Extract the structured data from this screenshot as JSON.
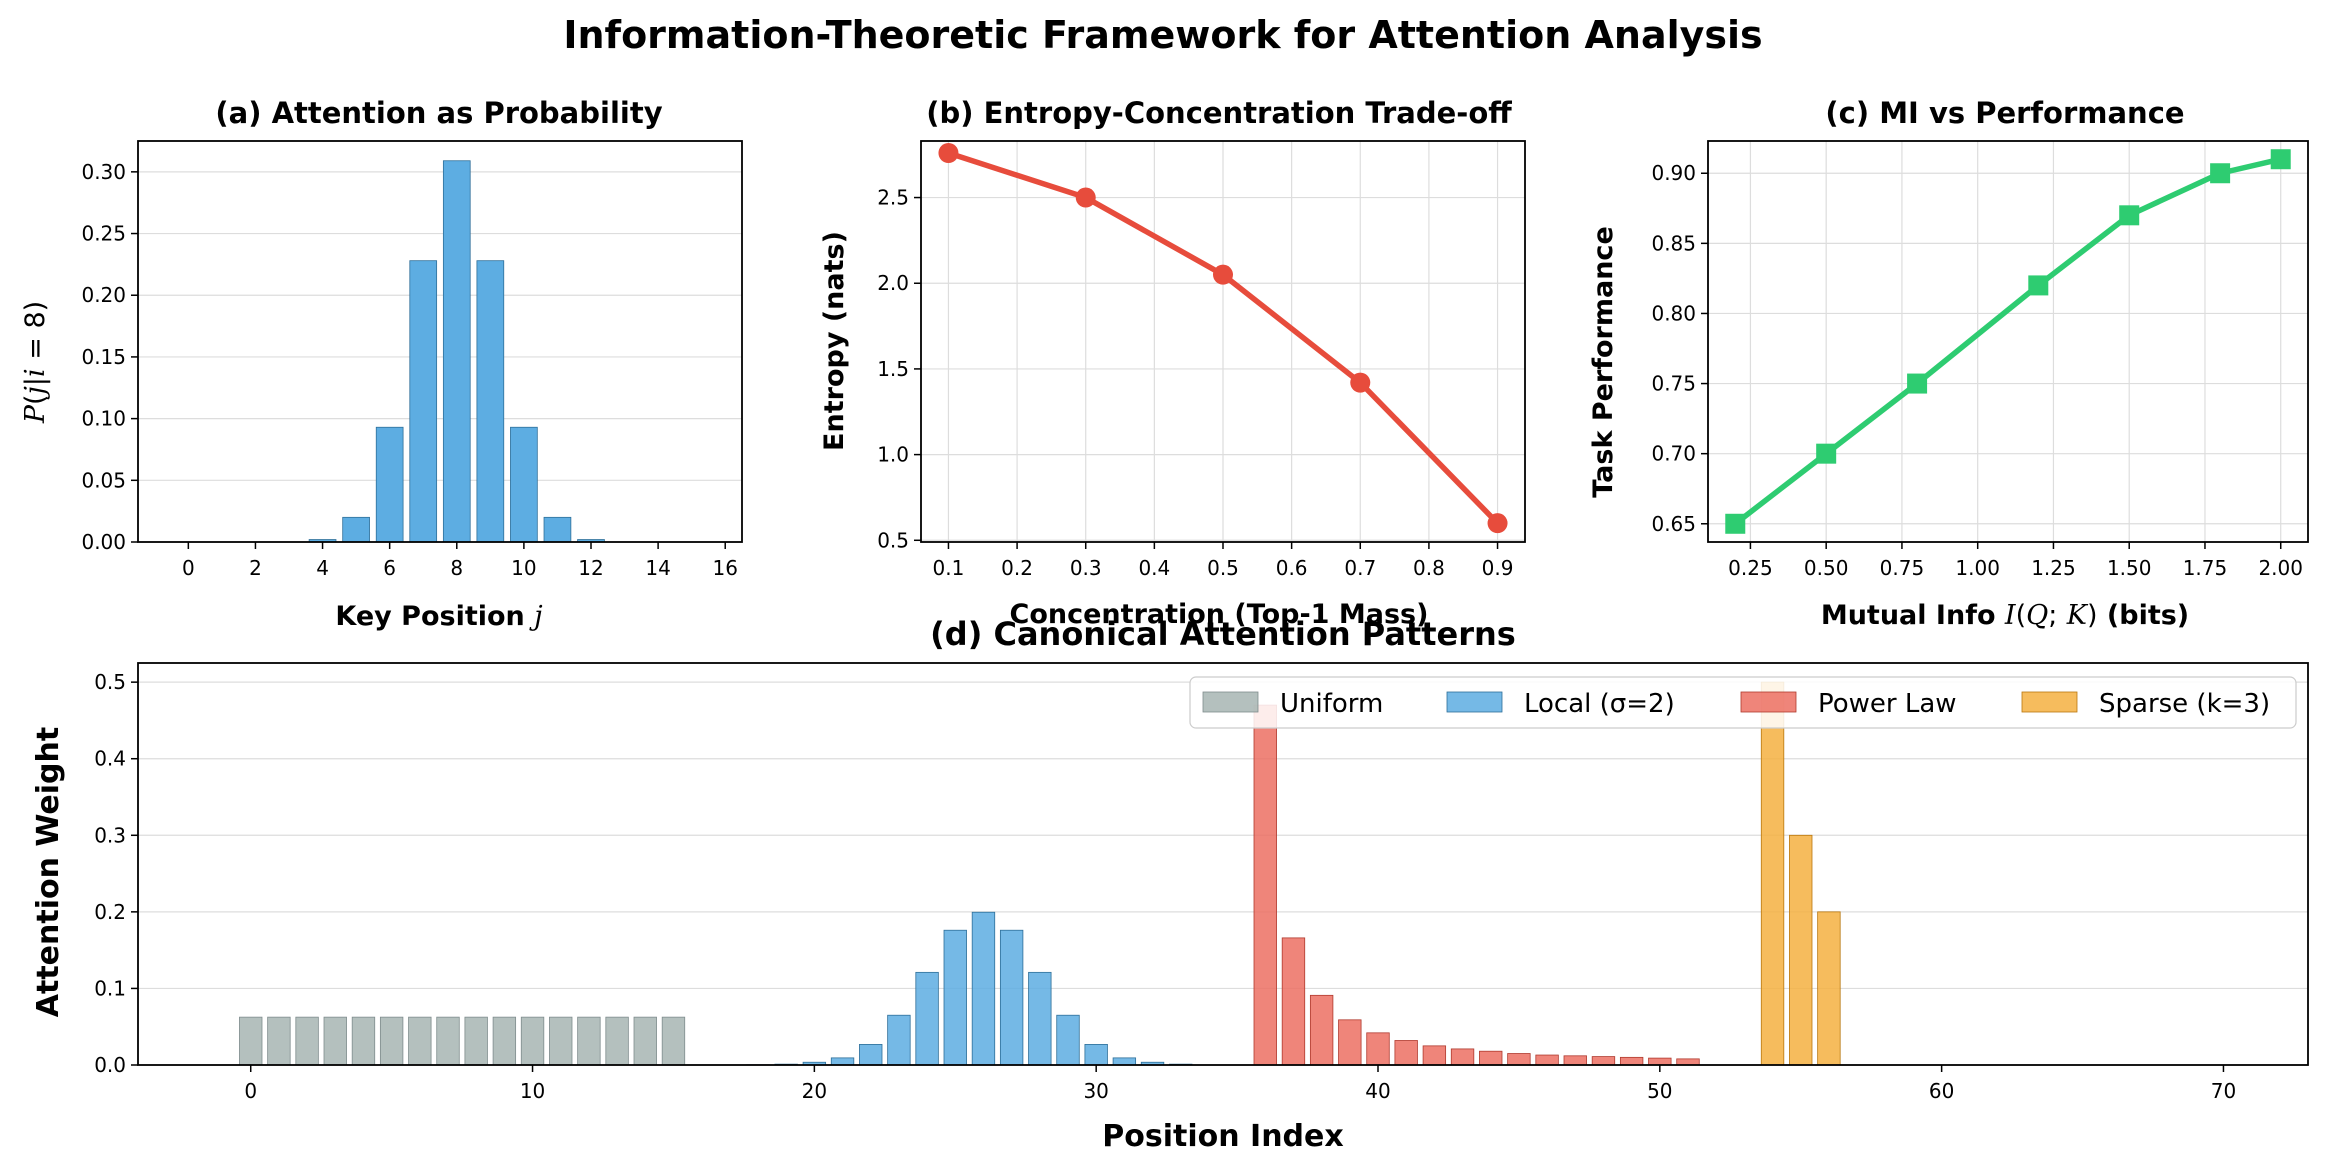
{
  "figure_title": "Information-Theoretic Framework for Attention Analysis",
  "colors": {
    "blue": "#5DADE2",
    "red": "#E74C3C",
    "green": "#2ECC71",
    "gray": "#A7B5B3",
    "salmon": "#EC7063",
    "orange": "#F5B041",
    "grid": "#dddddd"
  },
  "chart_data": [
    {
      "id": "a",
      "type": "bar",
      "title": "(a) Attention as Probability",
      "xlabel": "Key Position j",
      "ylabel": "P(j|i = 8)",
      "x": [
        0,
        1,
        2,
        3,
        4,
        5,
        6,
        7,
        8,
        9,
        10,
        11,
        12,
        13,
        14,
        15,
        16
      ],
      "values": [
        0,
        0,
        0,
        0,
        0.002,
        0.02,
        0.093,
        0.228,
        0.309,
        0.228,
        0.093,
        0.02,
        0.002,
        0,
        0,
        0,
        0
      ],
      "xlim": [
        -1.5,
        16.5
      ],
      "ylim": [
        0,
        0.325
      ],
      "xticks": [
        0,
        2,
        4,
        6,
        8,
        10,
        12,
        14,
        16
      ],
      "yticks": [
        0,
        0.05,
        0.1,
        0.15,
        0.2,
        0.25,
        0.3
      ],
      "ytick_labels": [
        "0.00",
        "0.05",
        "0.10",
        "0.15",
        "0.20",
        "0.25",
        "0.30"
      ],
      "grid": "y"
    },
    {
      "id": "b",
      "type": "line",
      "title": "(b) Entropy-Concentration Trade-off",
      "xlabel": "Concentration (Top-1 Mass)",
      "ylabel": "Entropy (nats)",
      "x": [
        0.1,
        0.3,
        0.5,
        0.7,
        0.9
      ],
      "y": [
        2.76,
        2.5,
        2.05,
        1.42,
        0.6
      ],
      "xlim": [
        0.06,
        0.94
      ],
      "ylim": [
        0.49,
        2.83
      ],
      "xticks": [
        0.1,
        0.2,
        0.3,
        0.4,
        0.5,
        0.6,
        0.7,
        0.8,
        0.9
      ],
      "xtick_labels": [
        "0.1",
        "0.2",
        "0.3",
        "0.4",
        "0.5",
        "0.6",
        "0.7",
        "0.8",
        "0.9"
      ],
      "yticks": [
        0.5,
        1.0,
        1.5,
        2.0,
        2.5
      ],
      "ytick_labels": [
        "0.5",
        "1.0",
        "1.5",
        "2.0",
        "2.5"
      ],
      "marker": "circle",
      "grid": "both"
    },
    {
      "id": "c",
      "type": "line",
      "title": "(c) MI vs Performance",
      "xlabel": "Mutual Info I(Q; K) (bits)",
      "ylabel": "Task Performance",
      "x": [
        0.2,
        0.5,
        0.8,
        1.2,
        1.5,
        1.8,
        2.0
      ],
      "y": [
        0.65,
        0.7,
        0.75,
        0.82,
        0.87,
        0.9,
        0.91
      ],
      "xlim": [
        0.11,
        2.09
      ],
      "ylim": [
        0.637,
        0.923
      ],
      "xticks": [
        0.25,
        0.5,
        0.75,
        1.0,
        1.25,
        1.5,
        1.75,
        2.0
      ],
      "xtick_labels": [
        "0.25",
        "0.50",
        "0.75",
        "1.00",
        "1.25",
        "1.50",
        "1.75",
        "2.00"
      ],
      "yticks": [
        0.65,
        0.7,
        0.75,
        0.8,
        0.85,
        0.9
      ],
      "ytick_labels": [
        "0.65",
        "0.70",
        "0.75",
        "0.80",
        "0.85",
        "0.90"
      ],
      "marker": "square",
      "grid": "both"
    },
    {
      "id": "d",
      "type": "bar",
      "title": "(d) Canonical Attention Patterns",
      "xlabel": "Position Index",
      "ylabel": "Attention Weight",
      "xlim": [
        -4,
        73
      ],
      "ylim": [
        0,
        0.525
      ],
      "xticks": [
        0,
        10,
        20,
        30,
        40,
        50,
        60,
        70
      ],
      "yticks": [
        0,
        0.1,
        0.2,
        0.3,
        0.4,
        0.5
      ],
      "ytick_labels": [
        "0.0",
        "0.1",
        "0.2",
        "0.3",
        "0.4",
        "0.5"
      ],
      "legend_position": "top-right",
      "grid": "y",
      "series": [
        {
          "name": "Uniform",
          "color_key": "gray",
          "x_start": 0,
          "values": [
            0.0625,
            0.0625,
            0.0625,
            0.0625,
            0.0625,
            0.0625,
            0.0625,
            0.0625,
            0.0625,
            0.0625,
            0.0625,
            0.0625,
            0.0625,
            0.0625,
            0.0625,
            0.0625
          ]
        },
        {
          "name": "Local (σ=2)",
          "color_key": "blue",
          "x_start": 18,
          "values": [
            0.0003,
            0.0011,
            0.0036,
            0.0093,
            0.0269,
            0.065,
            0.121,
            0.176,
            0.1995,
            0.176,
            0.121,
            0.065,
            0.0269,
            0.0093,
            0.0036,
            0.0011
          ]
        },
        {
          "name": "Power Law",
          "color_key": "salmon",
          "x_start": 36,
          "values": [
            0.47,
            0.166,
            0.091,
            0.059,
            0.042,
            0.032,
            0.025,
            0.021,
            0.018,
            0.015,
            0.013,
            0.012,
            0.011,
            0.01,
            0.009,
            0.008
          ]
        },
        {
          "name": "Sparse (k=3)",
          "color_key": "orange",
          "x_start": 54,
          "values": [
            0.5,
            0.3,
            0.2,
            0,
            0,
            0,
            0,
            0,
            0,
            0,
            0,
            0,
            0,
            0,
            0,
            0
          ]
        }
      ]
    }
  ]
}
